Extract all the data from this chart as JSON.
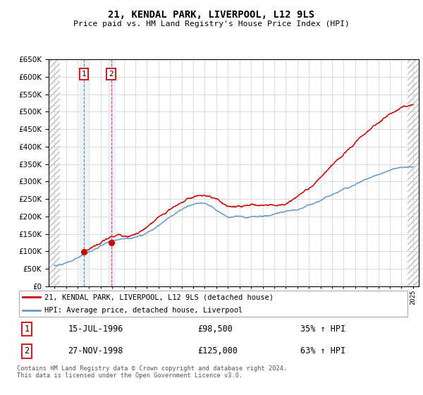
{
  "title": "21, KENDAL PARK, LIVERPOOL, L12 9LS",
  "subtitle": "Price paid vs. HM Land Registry's House Price Index (HPI)",
  "legend_line1": "21, KENDAL PARK, LIVERPOOL, L12 9LS (detached house)",
  "legend_line2": "HPI: Average price, detached house, Liverpool",
  "annotation1_date": "15-JUL-1996",
  "annotation1_price": "£98,500",
  "annotation1_hpi": "35% ↑ HPI",
  "annotation2_date": "27-NOV-1998",
  "annotation2_price": "£125,000",
  "annotation2_hpi": "63% ↑ HPI",
  "footer": "Contains HM Land Registry data © Crown copyright and database right 2024.\nThis data is licensed under the Open Government Licence v3.0.",
  "sale1_x": 1996.54,
  "sale1_y": 98500,
  "sale2_x": 1998.9,
  "sale2_y": 125000,
  "ylim": [
    0,
    650000
  ],
  "xlim_start": 1993.5,
  "xlim_end": 2025.5,
  "shade_color": "#ddeeff",
  "line_red": "#cc0000",
  "line_blue": "#6699cc",
  "grid_color": "#cccccc",
  "hatch_edgecolor": "#bbbbbb"
}
